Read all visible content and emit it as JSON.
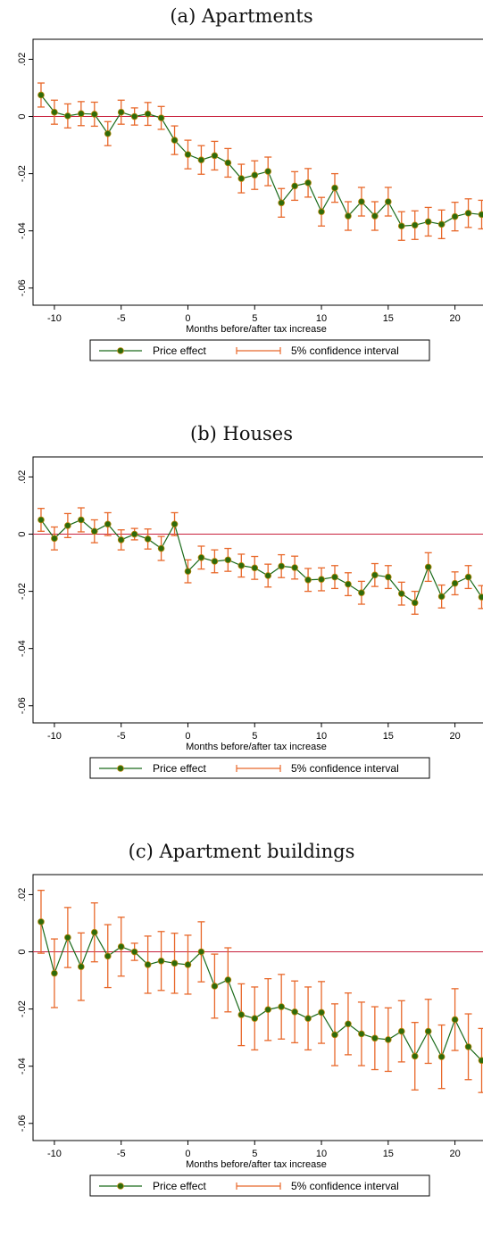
{
  "colors": {
    "line": "#1a6a1a",
    "marker_fill": "#2e6b0a",
    "marker_edge": "#b8860b",
    "ci": "#e8682a",
    "zero_line": "#c8203c"
  },
  "chart_data": [
    {
      "type": "line",
      "title": "(a) Apartments",
      "xlabel": "Months before/after tax increase",
      "ylabel": "",
      "xlim": [
        -11.6,
        22.1
      ],
      "ylim": [
        -0.066,
        0.027
      ],
      "xticks": [
        -10,
        -5,
        0,
        5,
        10,
        15,
        20
      ],
      "xtick_labels": [
        "-10",
        "-5",
        "0",
        "5",
        "10",
        "15",
        "20"
      ],
      "yticks": [
        0.02,
        0,
        -0.02,
        -0.04,
        -0.06
      ],
      "ytick_labels": [
        ".02",
        "0",
        "-.02",
        "-.04",
        "-.06"
      ],
      "legend": [
        "Price effect",
        "5% confidence interval"
      ],
      "legend_position": "bottom",
      "x": [
        -11,
        -10,
        -9,
        -8,
        -7,
        -6,
        -5,
        -4,
        -3,
        -2,
        -1,
        0,
        1,
        2,
        3,
        4,
        5,
        6,
        7,
        8,
        9,
        10,
        11,
        12,
        13,
        14,
        15,
        16,
        17,
        18,
        19,
        20,
        21,
        22
      ],
      "series": [
        {
          "name": "Price effect",
          "values": [
            0.0075,
            0.0015,
            0.0002,
            0.001,
            0.0008,
            -0.006,
            0.0015,
            0,
            0.0009,
            -0.0005,
            -0.0083,
            -0.0133,
            -0.0152,
            -0.0137,
            -0.0162,
            -0.0217,
            -0.0205,
            -0.0192,
            -0.0302,
            -0.0243,
            -0.0232,
            -0.0333,
            -0.025,
            -0.0348,
            -0.0298,
            -0.0348,
            -0.0298,
            -0.0383,
            -0.038,
            -0.0368,
            -0.0377,
            -0.035,
            -0.0338,
            -0.0343
          ]
        },
        {
          "name": "5% confidence interval",
          "lower": [
            0.0033,
            -0.0027,
            -0.004,
            -0.0032,
            -0.0034,
            -0.0102,
            -0.0027,
            -0.003,
            -0.0031,
            -0.0045,
            -0.0133,
            -0.0183,
            -0.0202,
            -0.0187,
            -0.0212,
            -0.0267,
            -0.0255,
            -0.0242,
            -0.0352,
            -0.0293,
            -0.0282,
            -0.0383,
            -0.03,
            -0.0398,
            -0.0348,
            -0.0398,
            -0.0348,
            -0.0433,
            -0.043,
            -0.0418,
            -0.0427,
            -0.04,
            -0.0388,
            -0.0393
          ],
          "upper": [
            0.0117,
            0.0057,
            0.0044,
            0.0052,
            0.005,
            -0.0018,
            0.0057,
            0.003,
            0.0049,
            0.0035,
            -0.0033,
            -0.0083,
            -0.0102,
            -0.0087,
            -0.0112,
            -0.0167,
            -0.0155,
            -0.0142,
            -0.0252,
            -0.0193,
            -0.0182,
            -0.0283,
            -0.02,
            -0.0298,
            -0.0248,
            -0.0298,
            -0.0248,
            -0.0333,
            -0.033,
            -0.0318,
            -0.0327,
            -0.03,
            -0.0288,
            -0.0293
          ]
        }
      ]
    },
    {
      "type": "line",
      "title": "(b) Houses",
      "xlabel": "Months before/after tax increase",
      "ylabel": "",
      "xlim": [
        -11.6,
        22.1
      ],
      "ylim": [
        -0.066,
        0.027
      ],
      "xticks": [
        -10,
        -5,
        0,
        5,
        10,
        15,
        20
      ],
      "xtick_labels": [
        "-10",
        "-5",
        "0",
        "5",
        "10",
        "15",
        "20"
      ],
      "yticks": [
        0.02,
        0,
        -0.02,
        -0.04,
        -0.06
      ],
      "ytick_labels": [
        ".02",
        "0",
        "-.02",
        "-.04",
        "-.06"
      ],
      "legend": [
        "Price effect",
        "5% confidence interval"
      ],
      "legend_position": "bottom",
      "x": [
        -11,
        -10,
        -9,
        -8,
        -7,
        -6,
        -5,
        -4,
        -3,
        -2,
        -1,
        0,
        1,
        2,
        3,
        4,
        5,
        6,
        7,
        8,
        9,
        10,
        11,
        12,
        13,
        14,
        15,
        16,
        17,
        18,
        19,
        20,
        21,
        22
      ],
      "series": [
        {
          "name": "Price effect",
          "values": [
            0.005,
            -0.0015,
            0.003,
            0.005,
            0.001,
            0.0035,
            -0.002,
            0,
            -0.0017,
            -0.005,
            0.0035,
            -0.013,
            -0.0082,
            -0.0095,
            -0.009,
            -0.011,
            -0.0118,
            -0.0145,
            -0.0112,
            -0.0117,
            -0.016,
            -0.0158,
            -0.015,
            -0.0175,
            -0.0205,
            -0.0143,
            -0.015,
            -0.0208,
            -0.024,
            -0.0115,
            -0.0218,
            -0.0172,
            -0.015,
            -0.022
          ]
        },
        {
          "name": "5% confidence interval",
          "lower": [
            0.001,
            -0.0055,
            -0.0012,
            0.0008,
            -0.003,
            -0.0005,
            -0.0055,
            -0.002,
            -0.0052,
            -0.0092,
            -0.0005,
            -0.017,
            -0.0122,
            -0.0135,
            -0.013,
            -0.015,
            -0.0158,
            -0.0185,
            -0.0152,
            -0.0157,
            -0.02,
            -0.0198,
            -0.019,
            -0.0215,
            -0.0245,
            -0.0183,
            -0.019,
            -0.0248,
            -0.028,
            -0.0165,
            -0.0258,
            -0.0212,
            -0.019,
            -0.026
          ],
          "upper": [
            0.009,
            0.0025,
            0.0072,
            0.0092,
            0.005,
            0.0075,
            0.0015,
            0.002,
            0.0018,
            -0.0008,
            0.0075,
            -0.009,
            -0.0042,
            -0.0055,
            -0.005,
            -0.007,
            -0.0078,
            -0.0105,
            -0.0072,
            -0.0077,
            -0.012,
            -0.0118,
            -0.011,
            -0.0135,
            -0.0165,
            -0.0103,
            -0.011,
            -0.0168,
            -0.02,
            -0.0065,
            -0.0178,
            -0.0132,
            -0.011,
            -0.018
          ]
        }
      ]
    },
    {
      "type": "line",
      "title": "(c) Apartment buildings",
      "xlabel": "Months before/after tax increase",
      "ylabel": "",
      "xlim": [
        -11.6,
        22.1
      ],
      "ylim": [
        -0.066,
        0.027
      ],
      "xticks": [
        -10,
        -5,
        0,
        5,
        10,
        15,
        20
      ],
      "xtick_labels": [
        "-10",
        "-5",
        "0",
        "5",
        "10",
        "15",
        "20"
      ],
      "yticks": [
        0.02,
        0,
        -0.02,
        -0.04,
        -0.06
      ],
      "ytick_labels": [
        ".02",
        "0",
        "-.02",
        "-.04",
        "-.06"
      ],
      "legend": [
        "Price effect",
        "5% confidence interval"
      ],
      "legend_position": "bottom",
      "x": [
        -11,
        -10,
        -9,
        -8,
        -7,
        -6,
        -5,
        -4,
        -3,
        -2,
        -1,
        0,
        1,
        2,
        3,
        4,
        5,
        6,
        7,
        8,
        9,
        10,
        11,
        12,
        13,
        14,
        15,
        16,
        17,
        18,
        19,
        20,
        21,
        22
      ],
      "series": [
        {
          "name": "Price effect",
          "values": [
            0.0105,
            -0.0075,
            0.005,
            -0.0052,
            0.0068,
            -0.0015,
            0.0018,
            0,
            -0.0045,
            -0.0032,
            -0.004,
            -0.0045,
            0,
            -0.012,
            -0.0098,
            -0.022,
            -0.0233,
            -0.0202,
            -0.0192,
            -0.021,
            -0.0233,
            -0.0212,
            -0.029,
            -0.0252,
            -0.0287,
            -0.0302,
            -0.0307,
            -0.0278,
            -0.0365,
            -0.0278,
            -0.0367,
            -0.0237,
            -0.0332,
            -0.038
          ]
        },
        {
          "name": "5% confidence interval",
          "lower": [
            -0.0005,
            -0.0195,
            -0.0055,
            -0.017,
            -0.0035,
            -0.0125,
            -0.0085,
            -0.003,
            -0.0145,
            -0.0135,
            -0.0145,
            -0.0148,
            -0.0105,
            -0.0232,
            -0.021,
            -0.0328,
            -0.0343,
            -0.031,
            -0.0305,
            -0.0318,
            -0.0343,
            -0.032,
            -0.0398,
            -0.036,
            -0.0398,
            -0.0412,
            -0.0418,
            -0.0385,
            -0.0483,
            -0.039,
            -0.0478,
            -0.0345,
            -0.0447,
            -0.0492
          ],
          "upper": [
            0.0215,
            0.0045,
            0.0155,
            0.0066,
            0.0171,
            0.0095,
            0.0121,
            0.003,
            0.0055,
            0.0071,
            0.0065,
            0.0058,
            0.0105,
            -0.0008,
            0.0014,
            -0.0112,
            -0.0123,
            -0.0094,
            -0.0079,
            -0.0102,
            -0.0123,
            -0.0104,
            -0.0182,
            -0.0144,
            -0.0176,
            -0.0192,
            -0.0196,
            -0.0171,
            -0.0247,
            -0.0166,
            -0.0256,
            -0.0129,
            -0.0217,
            -0.0268
          ]
        }
      ]
    }
  ]
}
